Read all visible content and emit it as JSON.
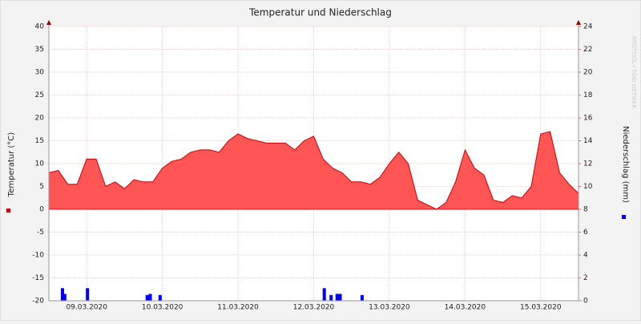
{
  "chart_data": {
    "type": "area",
    "title": "Temperatur und Niederschlag",
    "watermark": "RRDTOOL / TOBI OETIKER",
    "xlim": [
      8.5,
      15.5
    ],
    "xticks": [
      {
        "value": 9,
        "label": "09.03.2020"
      },
      {
        "value": 10,
        "label": "10.03.2020"
      },
      {
        "value": 11,
        "label": "11.03.2020"
      },
      {
        "value": 12,
        "label": "12.03.2020"
      },
      {
        "value": 13,
        "label": "13.03.2020"
      },
      {
        "value": 14,
        "label": "14.03.2020"
      },
      {
        "value": 15,
        "label": "15.03.2020"
      }
    ],
    "ylim": [
      -20,
      40
    ],
    "yticks": [
      -20,
      -15,
      -10,
      -5,
      0,
      5,
      10,
      15,
      20,
      25,
      30,
      35,
      40
    ],
    "y2lim": [
      0,
      24
    ],
    "y2ticks": [
      0,
      2,
      4,
      6,
      8,
      10,
      12,
      14,
      16,
      18,
      20,
      22,
      24
    ],
    "grid": true,
    "series": [
      {
        "name": "Temperatur (°C)",
        "color": "#ff5555",
        "line_color": "#cc0000",
        "type": "area",
        "x": [
          8.5,
          8.625,
          8.75,
          8.875,
          9,
          9.125,
          9.25,
          9.375,
          9.5,
          9.625,
          9.75,
          9.875,
          10,
          10.125,
          10.25,
          10.375,
          10.5,
          10.625,
          10.75,
          10.875,
          11,
          11.125,
          11.25,
          11.375,
          11.5,
          11.625,
          11.75,
          11.875,
          12,
          12.125,
          12.25,
          12.375,
          12.5,
          12.625,
          12.75,
          12.875,
          13,
          13.125,
          13.25,
          13.375,
          13.5,
          13.625,
          13.75,
          13.875,
          14,
          14.125,
          14.25,
          14.375,
          14.5,
          14.625,
          14.75,
          14.875,
          15,
          15.125,
          15.25,
          15.375,
          15.5
        ],
        "values": [
          8,
          8.5,
          5.5,
          5.5,
          11,
          11,
          5,
          6,
          4.5,
          6.5,
          6,
          6,
          9,
          10.5,
          11,
          12.5,
          13,
          13,
          12.5,
          15,
          16.5,
          15.5,
          15,
          14.5,
          14.5,
          14.5,
          13,
          15,
          16,
          11,
          9,
          8,
          6,
          6,
          5.5,
          7,
          10,
          12.5,
          10,
          2,
          1,
          0,
          1.5,
          6,
          13,
          9,
          7.5,
          2,
          1.5,
          3,
          2.5,
          5,
          16.5,
          17,
          8,
          5.5,
          3.5
        ]
      },
      {
        "name": "Niederschlag (mm)",
        "color": "#0000ff",
        "type": "bar",
        "axis": "y2",
        "x": [
          8.68,
          8.71,
          9.01,
          9.8,
          9.84,
          9.97,
          12.14,
          12.23,
          12.31,
          12.35,
          12.64
        ],
        "values": [
          1.1,
          0.6,
          1.1,
          0.5,
          0.6,
          0.5,
          1.1,
          0.5,
          0.6,
          0.6,
          0.5
        ]
      }
    ]
  }
}
